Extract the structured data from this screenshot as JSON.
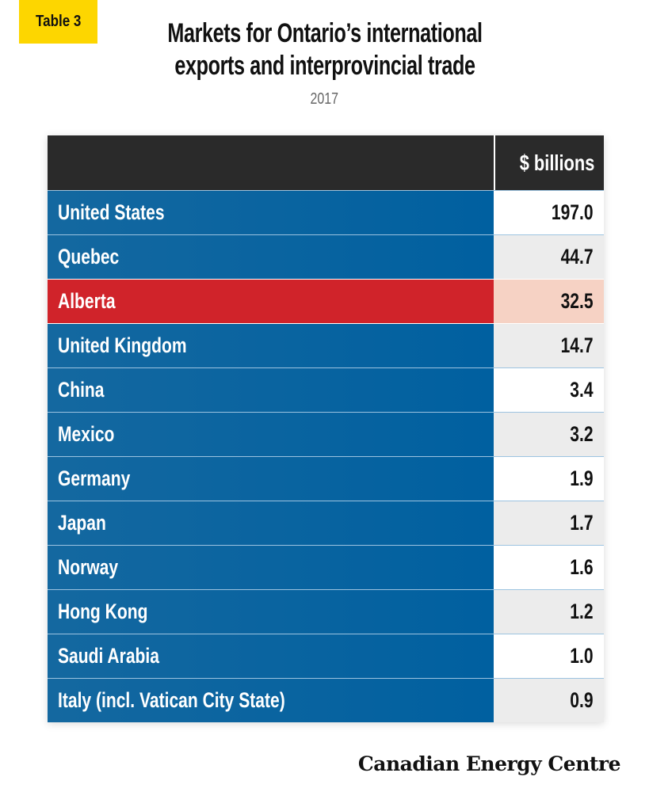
{
  "badge": "Table 3",
  "title_line1": "Markets for Ontario’s international",
  "title_line2": "exports and interprovincial trade",
  "subtitle": "2017",
  "table": {
    "value_header": "$ billions",
    "highlight_color": "#d0232a",
    "row_color": "#0a64a0",
    "rows": [
      {
        "label": "United States",
        "value": "197.0"
      },
      {
        "label": "Quebec",
        "value": "44.7"
      },
      {
        "label": "Alberta",
        "value": "32.5",
        "highlight": true
      },
      {
        "label": "United Kingdom",
        "value": "14.7"
      },
      {
        "label": "China",
        "value": "3.4"
      },
      {
        "label": "Mexico",
        "value": "3.2"
      },
      {
        "label": "Germany",
        "value": "1.9"
      },
      {
        "label": "Japan",
        "value": "1.7"
      },
      {
        "label": "Norway",
        "value": "1.6"
      },
      {
        "label": "Hong Kong",
        "value": "1.2"
      },
      {
        "label": "Saudi Arabia",
        "value": "1.0"
      },
      {
        "label": "Italy (incl. Vatican City State)",
        "value": "0.9"
      }
    ]
  },
  "logo": "Canadian Energy Centre"
}
